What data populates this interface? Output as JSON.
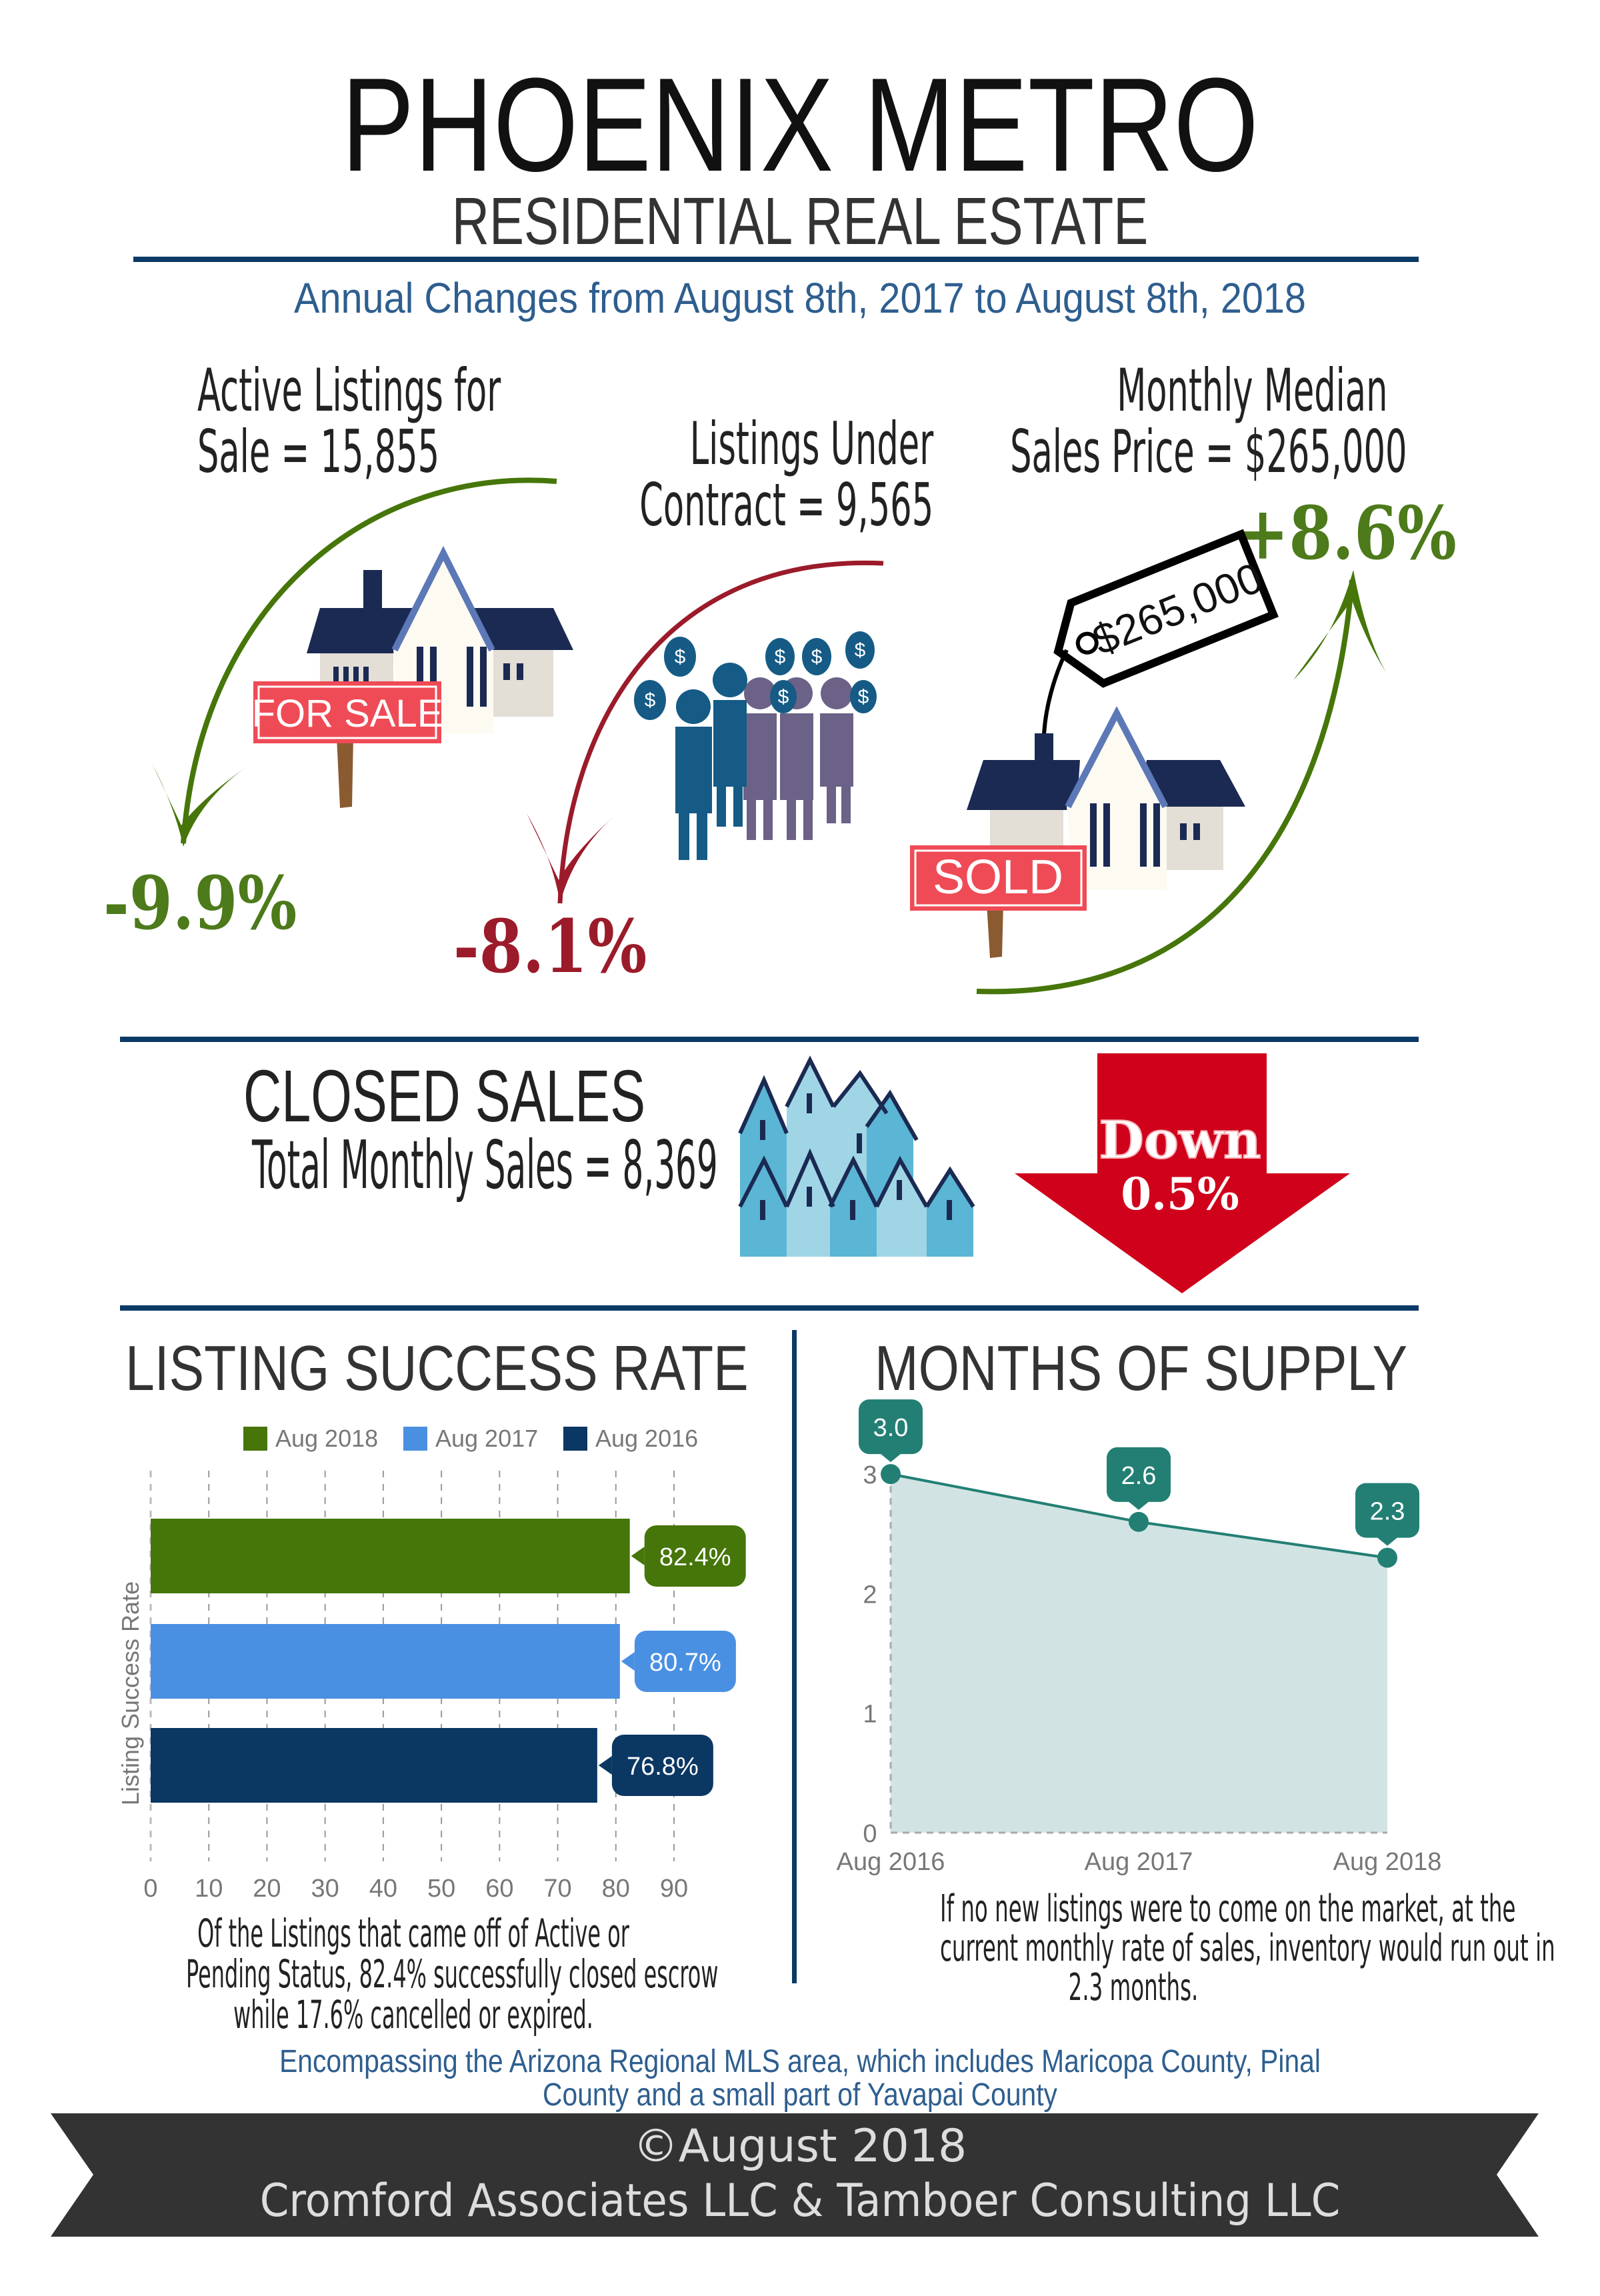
{
  "header": {
    "title": "PHOENIX METRO",
    "subtitle": "RESIDENTIAL REAL ESTATE",
    "period": "Annual Changes from August 8th, 2017 to August 8th, 2018"
  },
  "stats": {
    "active": {
      "line1": "Active Listings for",
      "line2": "Sale = 15,855",
      "change": "-9.9%",
      "sign_label": "FOR SALE"
    },
    "contract": {
      "line1": "Listings Under",
      "line2": "Contract = 9,565",
      "change": "-8.1%"
    },
    "price": {
      "line1": "Monthly Median",
      "line2": "Sales Price = $265,000",
      "change": "+8.6%",
      "tag": "$265,000",
      "sign_label": "SOLD"
    }
  },
  "closed_sales": {
    "title": "CLOSED SALES",
    "total": "Total Monthly Sales = 8,369",
    "direction": "Down",
    "change": "0.5%"
  },
  "colors": {
    "navy": "#0b3a66",
    "green": "#46760a",
    "red": "#9b1b2a",
    "arrow_red": "#d0021b",
    "teal": "#237f74"
  },
  "success": {
    "title": "LISTING SUCCESS RATE",
    "caption": [
      "Of the Listings that came off of Active or",
      "Pending Status, 82.4% successfully closed escrow",
      "while 17.6% cancelled or expired."
    ]
  },
  "supply": {
    "title": "MONTHS OF SUPPLY",
    "caption": [
      "If no new listings were to come on the market, at the",
      "current monthly rate of sales, inventory would run out in",
      "2.3 months."
    ]
  },
  "chart_data": [
    {
      "type": "bar",
      "orientation": "horizontal",
      "ylabel": "Listing Success Rate",
      "xlim": [
        0,
        90
      ],
      "xticks": [
        0,
        10,
        20,
        30,
        40,
        50,
        60,
        70,
        80,
        90
      ],
      "grid": "vertical dashed",
      "legend": "top",
      "series": [
        {
          "name": "Aug 2018",
          "value": 82.4,
          "label": "82.4%",
          "color": "#46760a"
        },
        {
          "name": "Aug 2017",
          "value": 80.7,
          "label": "80.7%",
          "color": "#4a90e2"
        },
        {
          "name": "Aug 2016",
          "value": 76.8,
          "label": "76.8%",
          "color": "#0b3763"
        }
      ]
    },
    {
      "type": "area",
      "categories": [
        "Aug 2016",
        "Aug 2017",
        "Aug 2018"
      ],
      "values": [
        3.0,
        2.6,
        2.3
      ],
      "labels": [
        "3.0",
        "2.6",
        "2.3"
      ],
      "ylim": [
        0,
        3
      ],
      "yticks": [
        0,
        1,
        2,
        3
      ],
      "color": "#237f74",
      "fill": "#d1e4e3"
    }
  ],
  "footer": {
    "note": [
      "Encompassing the Arizona Regional MLS area, which includes Maricopa County, Pinal",
      "County and a small part of Yavapai County"
    ],
    "copyright": "©August 2018",
    "credits": "Cromford Associates LLC & Tamboer Consulting LLC"
  }
}
